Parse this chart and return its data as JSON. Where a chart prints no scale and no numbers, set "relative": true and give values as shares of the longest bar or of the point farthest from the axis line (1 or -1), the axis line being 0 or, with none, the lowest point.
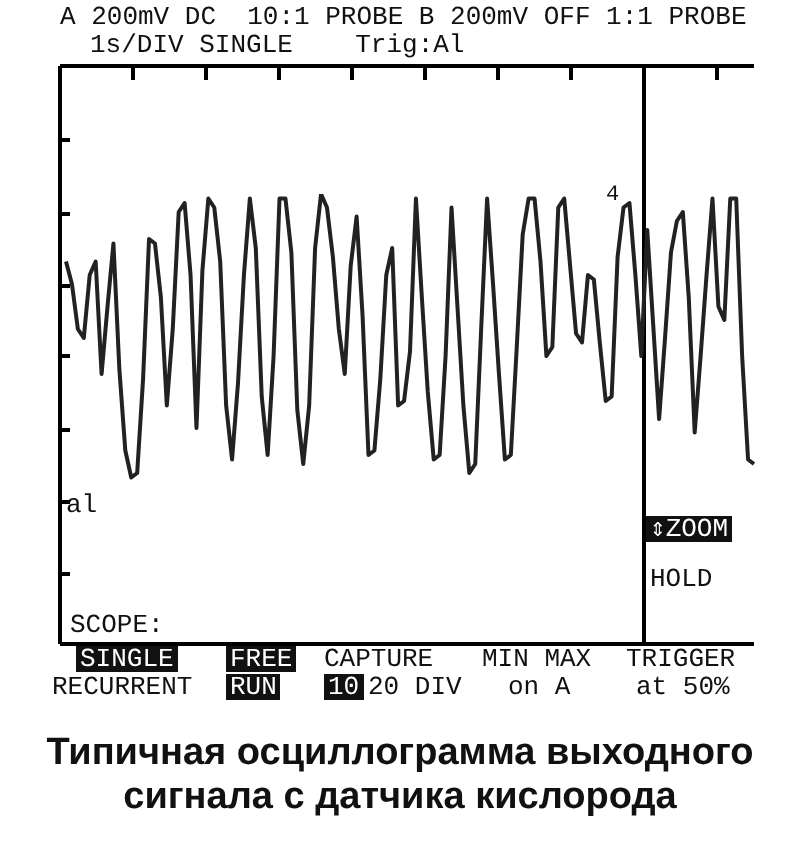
{
  "chart_data": {
    "type": "line",
    "relative": true,
    "title": "Типичная осциллограмма выходного сигнала с датчика кислорода",
    "annotations": [
      "A 200mV DC  10:1 PROBE B 200mV OFF 1:1 PROBE",
      "1s/DIV SINGLE    Trig:Al",
      "al",
      "4",
      "⇕ZOOM",
      "HOLD",
      "SCOPE:",
      "SINGLE",
      "RECURRENT",
      "FREE",
      "RUN",
      "CAPTURE",
      "10",
      "20 DIV",
      "MIN MAX",
      "on A",
      "TRIGGER",
      "at 50%"
    ],
    "color": "#222222",
    "categories": [
      null,
      null,
      null,
      null,
      null,
      null,
      null,
      null,
      null,
      null,
      null,
      null,
      null,
      null,
      null,
      null,
      null,
      null,
      null,
      null,
      null,
      null,
      null,
      null,
      null,
      null,
      null,
      null,
      null,
      null,
      null,
      null,
      null,
      null,
      null,
      null,
      null,
      null,
      null,
      null,
      null,
      null,
      null,
      null,
      null,
      null,
      null,
      null,
      null,
      null,
      null,
      null,
      null,
      null,
      null,
      null,
      null,
      null,
      null,
      null,
      null,
      null,
      null,
      null,
      null,
      null,
      null,
      null,
      null,
      null,
      null,
      null,
      null,
      null,
      null,
      null,
      null,
      null,
      null,
      null,
      null,
      null,
      null,
      null,
      null,
      null,
      null,
      null,
      null,
      null,
      null,
      null,
      null,
      null,
      null,
      null,
      null,
      null,
      null,
      null,
      null,
      null,
      null,
      null,
      null,
      null,
      null,
      null,
      null,
      null,
      null,
      null,
      null,
      null,
      null,
      null,
      null
    ],
    "values": [
      0.85,
      0.8,
      0.7,
      0.68,
      0.82,
      0.85,
      0.6,
      0.75,
      0.89,
      0.61,
      0.43,
      0.37,
      0.38,
      0.59,
      0.9,
      0.89,
      0.77,
      0.53,
      0.7,
      0.96,
      0.98,
      0.82,
      0.48,
      0.83,
      0.99,
      0.97,
      0.85,
      0.53,
      0.41,
      0.58,
      0.82,
      0.99,
      0.88,
      0.55,
      0.42,
      0.64,
      0.99,
      0.99,
      0.87,
      0.52,
      0.4,
      0.53,
      0.88,
      1,
      0.97,
      0.86,
      0.7,
      0.6,
      0.84,
      0.95,
      0.73,
      0.42,
      0.43,
      0.59,
      0.82,
      0.88,
      0.53,
      0.54,
      0.65,
      0.99,
      0.77,
      0.56,
      0.41,
      0.42,
      0.64,
      0.97,
      0.75,
      0.53,
      0.38,
      0.4,
      0.7,
      0.99,
      0.8,
      0.6,
      0.41,
      0.42,
      0.66,
      0.91,
      0.99,
      0.99,
      0.85,
      0.64,
      0.66,
      0.97,
      0.99,
      0.84,
      0.69,
      0.67,
      0.82,
      0.81,
      0.67,
      0.54,
      0.55,
      0.86,
      0.97,
      0.98,
      0.82,
      0.64,
      0.92,
      0.71,
      0.5,
      0.68,
      0.87,
      0.94,
      0.96,
      0.77,
      0.47,
      0.64,
      0.82,
      0.99,
      0.75,
      0.72,
      0.99,
      0.99,
      0.64,
      0.41,
      0.4
    ]
  }
}
